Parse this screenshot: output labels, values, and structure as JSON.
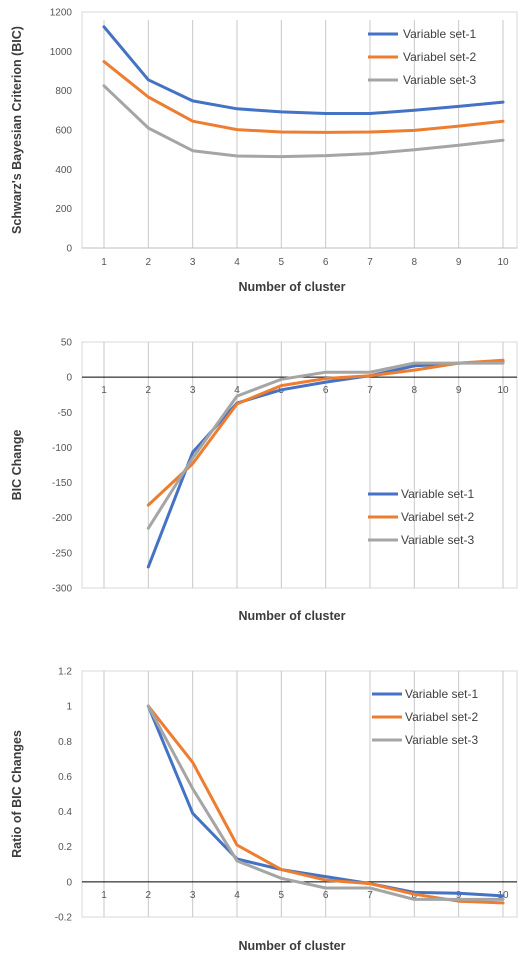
{
  "chart_data": [
    {
      "type": "line",
      "title": "",
      "xlabel": "Number of cluster",
      "ylabel": "Schwarz's Bayesian Criterion (BIC)",
      "x": [
        1,
        2,
        3,
        4,
        5,
        6,
        7,
        8,
        9,
        10
      ],
      "ylim": [
        0,
        1200
      ],
      "yticks": [
        0,
        200,
        400,
        600,
        800,
        1000,
        1200
      ],
      "ytick_labels": [
        "0",
        "200",
        "400",
        "600",
        "800",
        "1000",
        "1200"
      ],
      "grid": "vertical",
      "legend": "top-right",
      "series": [
        {
          "name": "Variable set-1",
          "color": "#4472c4",
          "values": [
            1125,
            855,
            748,
            708,
            692,
            684,
            684,
            700,
            720,
            742
          ]
        },
        {
          "name": "Variabel set-2",
          "color": "#ed7d31",
          "values": [
            948,
            768,
            645,
            602,
            590,
            588,
            590,
            598,
            620,
            645
          ]
        },
        {
          "name": "Variable set-3",
          "color": "#a5a5a5",
          "values": [
            825,
            610,
            495,
            468,
            465,
            470,
            480,
            500,
            522,
            548
          ]
        }
      ]
    },
    {
      "type": "line",
      "title": "",
      "xlabel": "Number of cluster",
      "ylabel": "BIC Change",
      "x": [
        1,
        2,
        3,
        4,
        5,
        6,
        7,
        8,
        9,
        10
      ],
      "ylim": [
        -300,
        50
      ],
      "yticks": [
        50,
        0,
        -50,
        -100,
        -150,
        -200,
        -250,
        -300
      ],
      "ytick_labels": [
        "50",
        "0",
        "-50",
        "-100",
        "-150",
        "-200",
        "-250",
        "-300"
      ],
      "grid": "vertical",
      "legend": "bottom-right",
      "series": [
        {
          "name": "Variable set-1",
          "color": "#4472c4",
          "x": [
            2,
            3,
            4,
            5,
            6,
            7,
            8,
            9,
            10
          ],
          "values": [
            -270,
            -107,
            -37,
            -18,
            -7,
            2,
            16,
            20,
            22
          ]
        },
        {
          "name": "Variabel set-2",
          "color": "#ed7d31",
          "x": [
            2,
            3,
            4,
            5,
            6,
            7,
            8,
            9,
            10
          ],
          "values": [
            -182,
            -123,
            -38,
            -12,
            -2,
            2,
            10,
            20,
            24
          ]
        },
        {
          "name": "Variable set-3",
          "color": "#a5a5a5",
          "x": [
            2,
            3,
            4,
            5,
            6,
            7,
            8,
            9,
            10
          ],
          "values": [
            -215,
            -115,
            -27,
            -3,
            7,
            7,
            20,
            20,
            20
          ]
        }
      ]
    },
    {
      "type": "line",
      "title": "",
      "xlabel": "Number of cluster",
      "ylabel": "Ratio of BIC Changes",
      "x": [
        1,
        2,
        3,
        4,
        5,
        6,
        7,
        8,
        9,
        10
      ],
      "ylim": [
        -0.2,
        1.2
      ],
      "yticks": [
        1.2,
        1,
        0.8,
        0.6,
        0.4,
        0.2,
        0,
        -0.2
      ],
      "ytick_labels": [
        "1.2",
        "1",
        "0.8",
        "0.6",
        "0.4",
        "0.2",
        "0",
        "-0.2"
      ],
      "grid": "vertical",
      "legend": "top-right",
      "series": [
        {
          "name": "Variable set-1",
          "color": "#4472c4",
          "x": [
            2,
            3,
            4,
            5,
            6,
            7,
            8,
            9,
            10
          ],
          "values": [
            1.0,
            0.39,
            0.13,
            0.07,
            0.03,
            -0.01,
            -0.06,
            -0.065,
            -0.08
          ]
        },
        {
          "name": "Variabel set-2",
          "color": "#ed7d31",
          "x": [
            2,
            3,
            4,
            5,
            6,
            7,
            8,
            9,
            10
          ],
          "values": [
            1.0,
            0.68,
            0.21,
            0.07,
            0.01,
            -0.01,
            -0.07,
            -0.11,
            -0.12
          ]
        },
        {
          "name": "Variable set-3",
          "color": "#a5a5a5",
          "x": [
            2,
            3,
            4,
            5,
            6,
            7,
            8,
            9,
            10
          ],
          "values": [
            1.0,
            0.53,
            0.12,
            0.02,
            -0.035,
            -0.035,
            -0.1,
            -0.1,
            -0.1
          ]
        }
      ]
    }
  ]
}
